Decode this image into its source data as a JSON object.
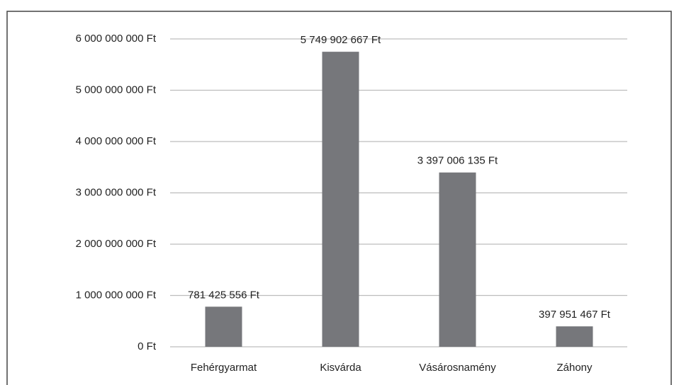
{
  "chart_data": {
    "type": "bar",
    "categories": [
      "Fehérgyarmat",
      "Kisvárda",
      "Vásárosnamény",
      "Záhony"
    ],
    "values": [
      781425556,
      5749902667,
      3397006135,
      397951467
    ],
    "value_labels": [
      "781 425 556 Ft",
      "5 749 902 667 Ft",
      "3 397 006 135 Ft",
      "397 951 467 Ft"
    ],
    "color": "#76777b",
    "ylim": [
      0,
      6000000000
    ],
    "yticks": [
      {
        "value": 0,
        "label": "0 Ft"
      },
      {
        "value": 1000000000,
        "label": "1 000 000 000 Ft"
      },
      {
        "value": 2000000000,
        "label": "2 000 000 000 Ft"
      },
      {
        "value": 3000000000,
        "label": "3 000 000 000 Ft"
      },
      {
        "value": 4000000000,
        "label": "4 000 000 000 Ft"
      },
      {
        "value": 5000000000,
        "label": "5 000 000 000 Ft"
      },
      {
        "value": 6000000000,
        "label": "6 000 000 000 Ft"
      }
    ],
    "grid": true
  }
}
